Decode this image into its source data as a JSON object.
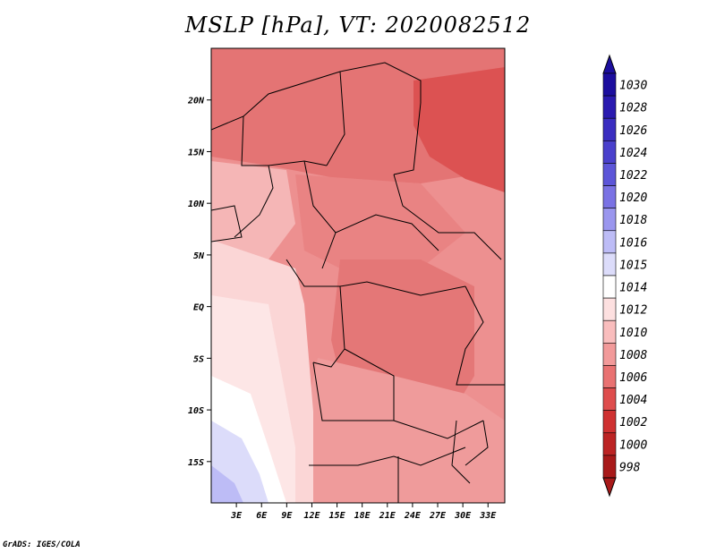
{
  "title": "MSLP [hPa], VT: 2020082512",
  "credit": "GrADS: IGES/COLA",
  "map": {
    "lon_range": [
      0,
      35
    ],
    "lat_range": [
      -19,
      25
    ],
    "lon_ticks": [
      "3E",
      "6E",
      "9E",
      "12E",
      "15E",
      "18E",
      "21E",
      "24E",
      "27E",
      "30E",
      "33E"
    ],
    "lon_tick_values": [
      3,
      6,
      9,
      12,
      15,
      18,
      21,
      24,
      27,
      30,
      33
    ],
    "lat_ticks": [
      "20N",
      "15N",
      "10N",
      "5N",
      "EQ",
      "5S",
      "10S",
      "15S"
    ],
    "lat_tick_values": [
      20,
      15,
      10,
      5,
      0,
      -5,
      -10,
      -15
    ]
  },
  "colorbar": {
    "labels": [
      "1030",
      "1028",
      "1026",
      "1024",
      "1022",
      "1020",
      "1018",
      "1016",
      "1015",
      "1014",
      "1012",
      "1010",
      "1008",
      "1006",
      "1004",
      "1002",
      "1000",
      "998"
    ],
    "colors": [
      "#1c0e9e",
      "#2a1ab0",
      "#3a2dc0",
      "#4a40cc",
      "#5c55d8",
      "#7a72e4",
      "#9a96ee",
      "#bdbcf6",
      "#dcdcfa",
      "#ffffff",
      "#fde0e0",
      "#f9bdbd",
      "#f29a9a",
      "#e97272",
      "#de4d4d",
      "#cf3131",
      "#bc2424",
      "#a81a1a"
    ]
  }
}
